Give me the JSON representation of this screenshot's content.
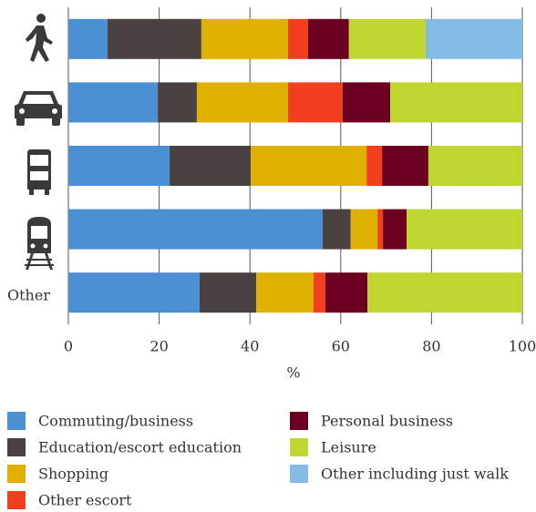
{
  "chart_data": {
    "type": "stacked-barh",
    "categories": [
      null,
      null,
      null,
      null,
      "Other"
    ],
    "series": [
      {
        "name": "Commuting/business",
        "color": "#4a90d2",
        "values": [
          8.6,
          19.7,
          22.3,
          56.0,
          28.9
        ]
      },
      {
        "name": "Education/escort education",
        "color": "#4a4240",
        "values": [
          20.7,
          8.6,
          17.9,
          6.2,
          12.5
        ]
      },
      {
        "name": "Shopping",
        "color": "#e0b000",
        "values": [
          19.1,
          20.1,
          25.5,
          5.9,
          12.6
        ]
      },
      {
        "name": "Other escort",
        "color": "#f04020",
        "values": [
          4.4,
          12.0,
          3.4,
          1.2,
          2.6
        ]
      },
      {
        "name": "Personal business",
        "color": "#6b0020",
        "values": [
          9.0,
          10.5,
          10.2,
          5.2,
          9.3
        ]
      },
      {
        "name": "Leisure",
        "color": "#bfd630",
        "values": [
          16.9,
          29.1,
          20.7,
          25.5,
          34.1
        ]
      },
      {
        "name": "Other including just walk",
        "color": "#85bce6",
        "values": [
          21.3,
          0,
          0,
          0,
          0
        ]
      }
    ],
    "xlim": [
      0,
      100
    ],
    "xticks": [
      0,
      20,
      40,
      60,
      80,
      100
    ],
    "xlabel": "%",
    "grid": true
  }
}
